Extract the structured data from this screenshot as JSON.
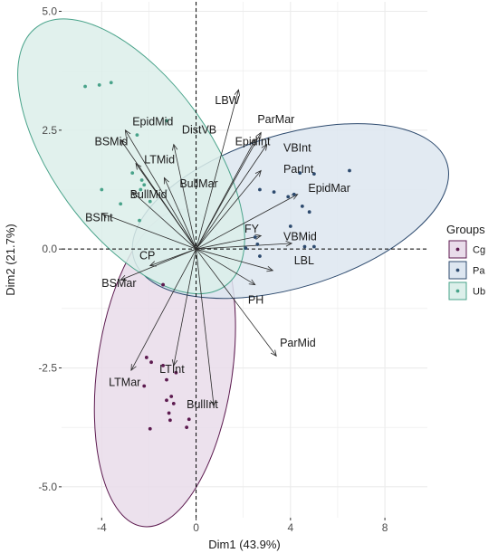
{
  "chart_data": {
    "type": "scatter",
    "subtype": "pca-biplot",
    "xlabel": "Dim1 (43.9%)",
    "ylabel": "Dim2 (21.7%)",
    "xlim": [
      -5.7,
      9.8
    ],
    "ylim": [
      -5.65,
      5.2
    ],
    "x_ticks": [
      -4,
      0,
      4,
      8
    ],
    "y_ticks": [
      -5.0,
      -2.5,
      0.0,
      2.5,
      5.0
    ],
    "x_tick_labels": [
      "-4",
      "0",
      "4",
      "8"
    ],
    "y_tick_labels": [
      "-5.0",
      "-2.5",
      "0.0",
      "2.5",
      "5.0"
    ],
    "grid": true,
    "reference_lines": {
      "x": 0,
      "y": 0,
      "style": "dashed"
    },
    "legend": {
      "title": "Groups",
      "placement": "right",
      "entries": [
        {
          "key": "Cg",
          "label": "Cg",
          "color": "#5c1a4f",
          "fill": "#e9dcea"
        },
        {
          "key": "Pa",
          "label": "Pa",
          "color": "#2d4a6e",
          "fill": "#dde6f0"
        },
        {
          "key": "Ub",
          "label": "Ub",
          "color": "#49a38a",
          "fill": "#dcefea"
        }
      ]
    },
    "series": [
      {
        "name": "Cg",
        "color": "#5c1a4f",
        "points": [
          [
            -1.4,
            -0.75
          ],
          [
            -2.1,
            -2.28
          ],
          [
            -1.9,
            -2.38
          ],
          [
            -1.4,
            -2.45
          ],
          [
            -0.85,
            -2.6
          ],
          [
            -1.25,
            -2.75
          ],
          [
            -2.2,
            -2.88
          ],
          [
            -1.05,
            -3.1
          ],
          [
            -1.25,
            -3.18
          ],
          [
            -0.95,
            -3.25
          ],
          [
            -1.15,
            -3.45
          ],
          [
            -1.1,
            -3.6
          ],
          [
            -0.3,
            -3.58
          ],
          [
            -0.4,
            -3.75
          ],
          [
            -1.95,
            -3.78
          ]
        ],
        "ellipse": {
          "center": [
            -1.32,
            -2.5
          ],
          "rx": 4.5,
          "ry": 1.9,
          "angle_deg": 82
        }
      },
      {
        "name": "Pa",
        "color": "#2d4a6e",
        "points": [
          [
            6.5,
            1.65
          ],
          [
            4.4,
            1.6
          ],
          [
            5.0,
            1.58
          ],
          [
            2.7,
            1.25
          ],
          [
            3.3,
            1.2
          ],
          [
            4.15,
            1.15
          ],
          [
            3.9,
            1.1
          ],
          [
            4.5,
            0.9
          ],
          [
            4.8,
            0.78
          ],
          [
            4.0,
            0.48
          ],
          [
            2.5,
            0.25
          ],
          [
            2.6,
            0.1
          ],
          [
            5.0,
            0.05
          ],
          [
            4.6,
            0.05
          ],
          [
            2.1,
            0.02
          ],
          [
            2.7,
            -0.15
          ]
        ],
        "ellipse": {
          "center": [
            4.0,
            0.8
          ],
          "rx": 4.6,
          "ry": 2.15,
          "angle_deg": 17
        }
      },
      {
        "name": "Ub",
        "color": "#49a38a",
        "points": [
          [
            -4.7,
            3.42
          ],
          [
            -4.1,
            3.45
          ],
          [
            -3.6,
            3.5
          ],
          [
            -1.25,
            2.7
          ],
          [
            -2.5,
            2.4
          ],
          [
            -2.7,
            1.6
          ],
          [
            -2.3,
            1.45
          ],
          [
            -2.2,
            1.35
          ],
          [
            -2.35,
            1.25
          ],
          [
            -1.95,
            1.0
          ],
          [
            -4.0,
            1.25
          ],
          [
            -3.2,
            0.95
          ],
          [
            -2.4,
            0.6
          ]
        ],
        "ellipse": {
          "center": [
            -2.75,
            1.95
          ],
          "rx": 4.5,
          "ry": 2.2,
          "angle_deg": -54
        }
      }
    ],
    "variables": [
      {
        "name": "LBW",
        "arrow": [
          1.8,
          3.35
        ],
        "label_pos": [
          0.8,
          3.05
        ]
      },
      {
        "name": "ParMar",
        "arrow": [
          2.75,
          2.45
        ],
        "label_pos": [
          2.6,
          2.65
        ]
      },
      {
        "name": "VBInt",
        "arrow": [
          3.0,
          2.2
        ],
        "label_pos": [
          3.7,
          2.05
        ]
      },
      {
        "name": "EpidInt",
        "arrow": [
          2.5,
          2.3
        ],
        "label_pos": [
          1.65,
          2.18
        ]
      },
      {
        "name": "ParInt",
        "arrow": [
          2.75,
          1.65
        ],
        "label_pos": [
          3.7,
          1.6
        ]
      },
      {
        "name": "EpidMar",
        "arrow": [
          4.3,
          1.15
        ],
        "label_pos": [
          4.75,
          1.2
        ]
      },
      {
        "name": "FY",
        "arrow": [
          2.75,
          0.28
        ],
        "label_pos": [
          2.05,
          0.35
        ]
      },
      {
        "name": "VBMid",
        "arrow": [
          4.05,
          0.12
        ],
        "label_pos": [
          3.7,
          0.18
        ]
      },
      {
        "name": "LBL",
        "arrow": [
          3.25,
          -0.45
        ],
        "label_pos": [
          4.15,
          -0.32
        ]
      },
      {
        "name": "PH",
        "arrow": [
          2.5,
          -0.75
        ],
        "label_pos": [
          2.2,
          -1.15
        ]
      },
      {
        "name": "ParMid",
        "arrow": [
          3.4,
          -2.25
        ],
        "label_pos": [
          3.55,
          -2.05
        ]
      },
      {
        "name": "DistVB",
        "arrow": [
          -0.95,
          2.2
        ],
        "label_pos": [
          -0.6,
          2.43
        ]
      },
      {
        "name": "EpidMid",
        "arrow": [
          -3.0,
          2.5
        ],
        "label_pos": [
          -2.7,
          2.6
        ]
      },
      {
        "name": "BSMid",
        "arrow": [
          -3.2,
          2.3
        ],
        "label_pos": [
          -4.3,
          2.18
        ]
      },
      {
        "name": "LTMid",
        "arrow": [
          -2.55,
          1.8
        ],
        "label_pos": [
          -2.2,
          1.8
        ]
      },
      {
        "name": "BullMar",
        "arrow": [
          -1.35,
          1.5
        ],
        "label_pos": [
          -0.7,
          1.3
        ]
      },
      {
        "name": "BullMid",
        "arrow": [
          -2.7,
          1.2
        ],
        "label_pos": [
          -2.8,
          1.07
        ]
      },
      {
        "name": "BSInt",
        "arrow": [
          -4.0,
          0.75
        ],
        "label_pos": [
          -4.7,
          0.58
        ]
      },
      {
        "name": "CP",
        "arrow": [
          -1.95,
          -0.35
        ],
        "label_pos": [
          -2.4,
          -0.22
        ]
      },
      {
        "name": "BSMar",
        "arrow": [
          -3.2,
          -0.65
        ],
        "label_pos": [
          -4.0,
          -0.8
        ]
      },
      {
        "name": "LTMar",
        "arrow": [
          -2.75,
          -2.55
        ],
        "label_pos": [
          -3.7,
          -2.88
        ]
      },
      {
        "name": "LTInt",
        "arrow": [
          -0.95,
          -2.45
        ],
        "label_pos": [
          -1.55,
          -2.6
        ]
      },
      {
        "name": "BullInt",
        "arrow": [
          0.75,
          -3.3
        ],
        "label_pos": [
          -0.4,
          -3.35
        ]
      }
    ]
  }
}
